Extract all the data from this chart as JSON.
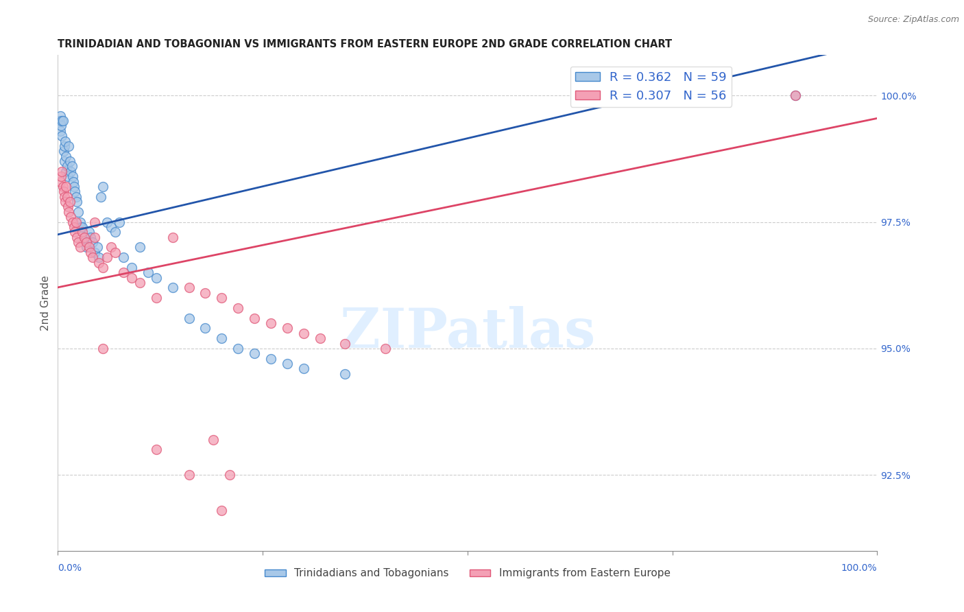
{
  "title": "TRINIDADIAN AND TOBAGONIAN VS IMMIGRANTS FROM EASTERN EUROPE 2ND GRADE CORRELATION CHART",
  "source": "Source: ZipAtlas.com",
  "ylabel": "2nd Grade",
  "ytick_values": [
    92.5,
    95.0,
    97.5,
    100.0
  ],
  "xlim": [
    0.0,
    100.0
  ],
  "ylim": [
    91.0,
    100.8
  ],
  "blue_label": "Trinidadians and Tobagonians",
  "pink_label": "Immigrants from Eastern Europe",
  "blue_R": 0.362,
  "blue_N": 59,
  "pink_R": 0.307,
  "pink_N": 56,
  "blue_color": "#a8c8e8",
  "pink_color": "#f4a0b5",
  "blue_edge_color": "#4488cc",
  "pink_edge_color": "#e05878",
  "blue_line_color": "#2255aa",
  "pink_line_color": "#dd4466",
  "watermark_color": "#ddeeff",
  "blue_x": [
    0.2,
    0.3,
    0.3,
    0.4,
    0.5,
    0.5,
    0.6,
    0.7,
    0.8,
    0.8,
    0.9,
    1.0,
    1.0,
    1.1,
    1.2,
    1.3,
    1.5,
    1.6,
    1.7,
    1.8,
    1.9,
    2.0,
    2.1,
    2.2,
    2.3,
    2.5,
    2.7,
    2.8,
    3.0,
    3.2,
    3.5,
    3.8,
    4.0,
    4.2,
    4.5,
    4.8,
    5.0,
    5.2,
    5.5,
    6.0,
    6.5,
    7.0,
    7.5,
    8.0,
    9.0,
    10.0,
    11.0,
    12.0,
    14.0,
    16.0,
    18.0,
    20.0,
    22.0,
    24.0,
    26.0,
    28.0,
    30.0,
    35.0,
    90.0
  ],
  "blue_y": [
    99.5,
    99.3,
    99.6,
    99.4,
    99.5,
    99.2,
    99.5,
    98.9,
    99.0,
    98.7,
    99.1,
    98.8,
    98.5,
    98.6,
    98.4,
    99.0,
    98.7,
    98.5,
    98.6,
    98.4,
    98.3,
    98.2,
    98.1,
    98.0,
    97.9,
    97.7,
    97.5,
    97.4,
    97.4,
    97.2,
    97.0,
    97.3,
    97.2,
    97.1,
    96.9,
    97.0,
    96.8,
    98.0,
    98.2,
    97.5,
    97.4,
    97.3,
    97.5,
    96.8,
    96.6,
    97.0,
    96.5,
    96.4,
    96.2,
    95.6,
    95.4,
    95.2,
    95.0,
    94.9,
    94.8,
    94.7,
    94.6,
    94.5,
    100.0
  ],
  "pink_x": [
    0.3,
    0.4,
    0.5,
    0.6,
    0.7,
    0.8,
    0.9,
    1.0,
    1.1,
    1.2,
    1.3,
    1.5,
    1.6,
    1.8,
    2.0,
    2.1,
    2.2,
    2.3,
    2.5,
    2.7,
    3.0,
    3.2,
    3.5,
    3.8,
    4.0,
    4.2,
    4.5,
    5.0,
    5.5,
    6.0,
    6.5,
    7.0,
    8.0,
    9.0,
    10.0,
    12.0,
    14.0,
    16.0,
    18.0,
    20.0,
    22.0,
    24.0,
    26.0,
    28.0,
    30.0,
    32.0,
    35.0,
    40.0,
    12.0,
    16.0,
    4.5,
    5.5,
    19.0,
    21.0,
    20.0,
    90.0
  ],
  "pink_y": [
    98.3,
    98.4,
    98.5,
    98.2,
    98.1,
    98.0,
    97.9,
    98.2,
    98.0,
    97.8,
    97.7,
    97.9,
    97.6,
    97.5,
    97.4,
    97.3,
    97.5,
    97.2,
    97.1,
    97.0,
    97.3,
    97.2,
    97.1,
    97.0,
    96.9,
    96.8,
    97.2,
    96.7,
    96.6,
    96.8,
    97.0,
    96.9,
    96.5,
    96.4,
    96.3,
    96.0,
    97.2,
    96.2,
    96.1,
    96.0,
    95.8,
    95.6,
    95.5,
    95.4,
    95.3,
    95.2,
    95.1,
    95.0,
    93.0,
    92.5,
    97.5,
    95.0,
    93.2,
    92.5,
    91.8,
    100.0
  ]
}
